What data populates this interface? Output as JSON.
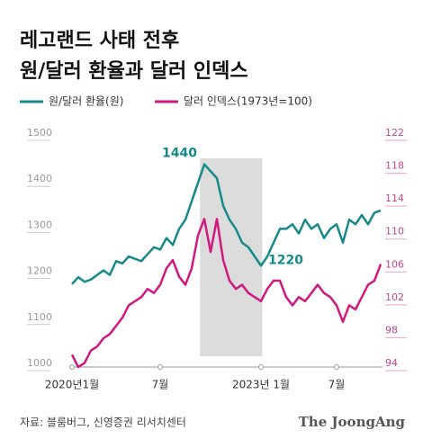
{
  "chart_data": {
    "type": "line",
    "title": [
      "레고랜드 사태 전후",
      "원/달러 환율과 달러 인덱스"
    ],
    "series": [
      {
        "name": "원/달러 환율(원)",
        "color": "#168a8a",
        "values": [
          1180,
          1195,
          1185,
          1190,
          1200,
          1210,
          1200,
          1230,
          1225,
          1240,
          1235,
          1230,
          1245,
          1260,
          1255,
          1280,
          1265,
          1300,
          1320,
          1360,
          1400,
          1440,
          1425,
          1410,
          1350,
          1320,
          1300,
          1270,
          1260,
          1240,
          1220,
          1240,
          1270,
          1300,
          1300,
          1310,
          1290,
          1320,
          1300,
          1310,
          1280,
          1300,
          1310,
          1270,
          1320,
          1310,
          1330,
          1310,
          1335,
          1340
        ]
      },
      {
        "name": "달러 인덱스(1973년=100)",
        "color": "#d0187f",
        "axis": "y2",
        "values": [
          95.5,
          94,
          94.5,
          96,
          96.5,
          97.5,
          98,
          99,
          100,
          101.5,
          102,
          102.5,
          103.5,
          103,
          104,
          106,
          107,
          105,
          104,
          106,
          110,
          112,
          108,
          112,
          107,
          104.5,
          103.5,
          104,
          103,
          102.5,
          102,
          103.5,
          104.5,
          104.5,
          102.5,
          101.5,
          102.5,
          102,
          103,
          104,
          103,
          102.5,
          101.5,
          99.5,
          101.5,
          101,
          102.5,
          104,
          104.5,
          106.5
        ]
      }
    ],
    "xticks": [
      {
        "value": 0,
        "label": "2020년1월"
      },
      {
        "value": 14,
        "label": "7월"
      },
      {
        "value": 30,
        "label": "2023년 1월"
      },
      {
        "value": 42,
        "label": "7월"
      }
    ],
    "xlim": [
      0,
      49
    ],
    "shade": [
      20.3,
      30.2
    ],
    "ylim": [
      1000,
      1500
    ],
    "yticks": [
      1000,
      1100,
      1200,
      1300,
      1400,
      1500
    ],
    "y2lim": [
      94,
      122
    ],
    "y2ticks": [
      94,
      98,
      102,
      106,
      110,
      114,
      118,
      122
    ],
    "annotations": [
      1440,
      1220
    ],
    "source": "자료: 블룸버그, 신영증권 리서치센터",
    "brand": "The JoongAng"
  }
}
